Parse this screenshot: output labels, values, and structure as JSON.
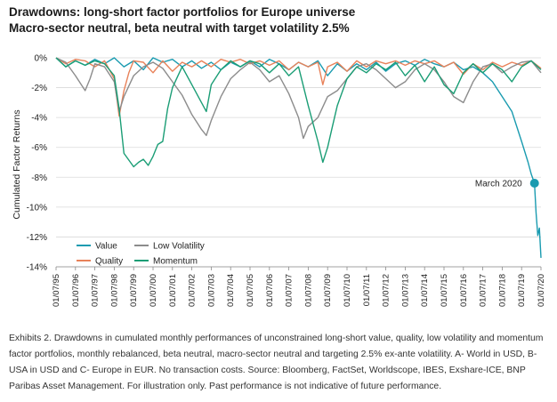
{
  "header": {
    "title": "Drawdowns: long-short factor portfolios for Europe universe",
    "subtitle": "Macro-sector neutral, beta neutral with target volatility 2.5%"
  },
  "caption": "Exhibits 2. Drawdowns in cumulated monthly performances of unconstrained long-short value, quality, low volatility and momentum factor portfolios, monthly rebalanced, beta neutral, macro-sector neutral and targeting 2.5% ex-ante volatility. A- World in USD, B- USA in USD and C- Europe in EUR. No transaction costs. Source: Bloomberg, FactSet, Worldscope, IBES, Exshare-ICE, BNP Paribas Asset Management. For illustration only. Past performance is not indicative of future performance.",
  "chart_data": {
    "type": "line",
    "title": "Drawdowns: long-short factor portfolios for Europe universe",
    "subtitle": "Macro-sector neutral, beta neutral with target volatility 2.5%",
    "xlabel": "",
    "ylabel": "Cumulated Factor Returns",
    "xlim": [
      "1995-07",
      "2020-07"
    ],
    "ylim": [
      -14,
      0
    ],
    "y_ticks": [
      "0%",
      "-2%",
      "-4%",
      "-6%",
      "-8%",
      "-10%",
      "-12%",
      "-14%"
    ],
    "x_ticks": [
      "01/07/95",
      "01/07/96",
      "01/07/97",
      "01/07/98",
      "01/07/99",
      "01/07/00",
      "01/07/01",
      "01/07/02",
      "01/07/03",
      "01/07/04",
      "01/07/05",
      "01/07/06",
      "01/07/07",
      "01/07/08",
      "01/07/09",
      "01/07/10",
      "01/07/11",
      "01/07/12",
      "01/07/13",
      "01/07/14",
      "01/07/15",
      "01/07/16",
      "01/07/17",
      "01/07/18",
      "01/07/19",
      "01/07/20"
    ],
    "grid": "horizontal",
    "legend": "bottom-left",
    "annotation": {
      "text": "March 2020",
      "x": "2020-03",
      "y": -8.4
    },
    "series": [
      {
        "name": "Value",
        "color": "#1a9bb0",
        "points": [
          [
            "1995-07",
            0
          ],
          [
            "1996-01",
            -0.6
          ],
          [
            "1996-07",
            -0.2
          ],
          [
            "1997-01",
            -0.5
          ],
          [
            "1997-07",
            -0.1
          ],
          [
            "1998-01",
            -0.4
          ],
          [
            "1998-07",
            0
          ],
          [
            "1999-01",
            -0.6
          ],
          [
            "1999-07",
            -0.2
          ],
          [
            "2000-01",
            -0.8
          ],
          [
            "2000-07",
            0
          ],
          [
            "2001-01",
            -0.3
          ],
          [
            "2001-07",
            -0.1
          ],
          [
            "2002-01",
            -0.6
          ],
          [
            "2002-07",
            -0.2
          ],
          [
            "2003-01",
            -0.7
          ],
          [
            "2003-07",
            -0.3
          ],
          [
            "2004-01",
            -0.8
          ],
          [
            "2004-07",
            -0.3
          ],
          [
            "2005-01",
            -0.6
          ],
          [
            "2005-07",
            -0.2
          ],
          [
            "2006-01",
            -0.6
          ],
          [
            "2006-07",
            -0.1
          ],
          [
            "2007-01",
            -0.4
          ],
          [
            "2007-07",
            -0.8
          ],
          [
            "2008-01",
            -0.3
          ],
          [
            "2008-07",
            -0.6
          ],
          [
            "2009-01",
            -0.2
          ],
          [
            "2009-07",
            -1.2
          ],
          [
            "2010-01",
            -0.4
          ],
          [
            "2010-07",
            -0.9
          ],
          [
            "2011-01",
            -0.4
          ],
          [
            "2011-07",
            -0.8
          ],
          [
            "2012-01",
            -0.3
          ],
          [
            "2012-07",
            -0.9
          ],
          [
            "2013-01",
            -0.4
          ],
          [
            "2013-07",
            -0.2
          ],
          [
            "2014-01",
            -0.5
          ],
          [
            "2014-07",
            -0.1
          ],
          [
            "2015-01",
            -0.4
          ],
          [
            "2015-07",
            -0.6
          ],
          [
            "2016-01",
            -0.3
          ],
          [
            "2016-07",
            -0.8
          ],
          [
            "2017-01",
            -0.6
          ],
          [
            "2017-07",
            -1.0
          ],
          [
            "2018-01",
            -1.6
          ],
          [
            "2018-07",
            -2.6
          ],
          [
            "2019-01",
            -3.6
          ],
          [
            "2019-07",
            -5.6
          ],
          [
            "2019-11",
            -7.0
          ],
          [
            "2020-01",
            -7.8
          ],
          [
            "2020-03",
            -8.4
          ],
          [
            "2020-04",
            -10.4
          ],
          [
            "2020-05",
            -11.9
          ],
          [
            "2020-06",
            -11.4
          ],
          [
            "2020-07",
            -13.4
          ]
        ]
      },
      {
        "name": "Quality",
        "color": "#e8825a",
        "points": [
          [
            "1995-07",
            0
          ],
          [
            "1996-01",
            -0.4
          ],
          [
            "1996-07",
            -0.1
          ],
          [
            "1997-01",
            -0.2
          ],
          [
            "1997-07",
            -0.6
          ],
          [
            "1998-01",
            -0.2
          ],
          [
            "1998-07",
            -1.4
          ],
          [
            "1998-10",
            -3.9
          ],
          [
            "1999-01",
            -2.2
          ],
          [
            "1999-04",
            -1.0
          ],
          [
            "1999-07",
            -0.2
          ],
          [
            "2000-01",
            -0.3
          ],
          [
            "2000-07",
            -1.0
          ],
          [
            "2001-01",
            -0.2
          ],
          [
            "2001-07",
            -0.9
          ],
          [
            "2002-01",
            -0.3
          ],
          [
            "2002-07",
            -0.6
          ],
          [
            "2003-01",
            -0.2
          ],
          [
            "2003-07",
            -0.6
          ],
          [
            "2004-01",
            -0.1
          ],
          [
            "2004-07",
            -0.3
          ],
          [
            "2005-01",
            -0.1
          ],
          [
            "2005-07",
            -0.4
          ],
          [
            "2006-01",
            -0.2
          ],
          [
            "2006-07",
            -0.5
          ],
          [
            "2007-01",
            -0.2
          ],
          [
            "2007-07",
            -0.8
          ],
          [
            "2008-01",
            -0.3
          ],
          [
            "2008-07",
            -0.6
          ],
          [
            "2009-01",
            -0.3
          ],
          [
            "2009-04",
            -1.8
          ],
          [
            "2009-07",
            -0.6
          ],
          [
            "2010-01",
            -0.3
          ],
          [
            "2010-07",
            -0.9
          ],
          [
            "2011-01",
            -0.2
          ],
          [
            "2011-07",
            -0.6
          ],
          [
            "2012-01",
            -0.2
          ],
          [
            "2012-07",
            -0.4
          ],
          [
            "2013-01",
            -0.2
          ],
          [
            "2013-07",
            -0.5
          ],
          [
            "2014-01",
            -0.2
          ],
          [
            "2014-07",
            -0.4
          ],
          [
            "2015-01",
            -0.2
          ],
          [
            "2015-07",
            -0.6
          ],
          [
            "2016-01",
            -0.3
          ],
          [
            "2016-07",
            -1.1
          ],
          [
            "2017-01",
            -0.4
          ],
          [
            "2017-07",
            -0.8
          ],
          [
            "2018-01",
            -0.3
          ],
          [
            "2018-07",
            -0.6
          ],
          [
            "2019-01",
            -0.3
          ],
          [
            "2019-07",
            -0.5
          ],
          [
            "2020-01",
            -0.2
          ],
          [
            "2020-07",
            -0.7
          ]
        ]
      },
      {
        "name": "Low Volatility",
        "color": "#8c8c8c",
        "points": [
          [
            "1995-07",
            0
          ],
          [
            "1996-01",
            -0.3
          ],
          [
            "1996-07",
            -1.2
          ],
          [
            "1997-01",
            -2.2
          ],
          [
            "1997-04",
            -1.4
          ],
          [
            "1997-07",
            -0.4
          ],
          [
            "1998-01",
            -0.6
          ],
          [
            "1998-07",
            -1.6
          ],
          [
            "1998-10",
            -3.6
          ],
          [
            "1999-01",
            -2.6
          ],
          [
            "1999-07",
            -1.2
          ],
          [
            "2000-01",
            -0.6
          ],
          [
            "2000-07",
            -0.3
          ],
          [
            "2001-01",
            -0.7
          ],
          [
            "2001-07",
            -1.6
          ],
          [
            "2002-01",
            -2.5
          ],
          [
            "2002-07",
            -3.8
          ],
          [
            "2003-01",
            -4.8
          ],
          [
            "2003-04",
            -5.2
          ],
          [
            "2003-07",
            -4.2
          ],
          [
            "2004-01",
            -2.6
          ],
          [
            "2004-07",
            -1.4
          ],
          [
            "2005-01",
            -0.8
          ],
          [
            "2005-07",
            -0.3
          ],
          [
            "2006-01",
            -0.8
          ],
          [
            "2006-07",
            -1.6
          ],
          [
            "2007-01",
            -1.2
          ],
          [
            "2007-07",
            -2.4
          ],
          [
            "2008-01",
            -4.0
          ],
          [
            "2008-04",
            -5.4
          ],
          [
            "2008-07",
            -4.6
          ],
          [
            "2009-01",
            -4.0
          ],
          [
            "2009-07",
            -2.6
          ],
          [
            "2010-01",
            -2.2
          ],
          [
            "2010-07",
            -1.4
          ],
          [
            "2011-01",
            -0.6
          ],
          [
            "2011-07",
            -0.4
          ],
          [
            "2012-01",
            -0.8
          ],
          [
            "2012-07",
            -1.4
          ],
          [
            "2013-01",
            -2.0
          ],
          [
            "2013-07",
            -1.6
          ],
          [
            "2014-01",
            -0.8
          ],
          [
            "2014-07",
            -0.4
          ],
          [
            "2015-01",
            -0.8
          ],
          [
            "2015-07",
            -1.6
          ],
          [
            "2016-01",
            -2.6
          ],
          [
            "2016-07",
            -3.0
          ],
          [
            "2017-01",
            -1.6
          ],
          [
            "2017-07",
            -0.6
          ],
          [
            "2018-01",
            -0.4
          ],
          [
            "2018-07",
            -1.0
          ],
          [
            "2019-01",
            -0.6
          ],
          [
            "2019-07",
            -0.3
          ],
          [
            "2020-01",
            -0.2
          ],
          [
            "2020-07",
            -1.0
          ]
        ]
      },
      {
        "name": "Momentum",
        "color": "#1a9d75",
        "points": [
          [
            "1995-07",
            0
          ],
          [
            "1996-01",
            -0.6
          ],
          [
            "1996-07",
            -0.2
          ],
          [
            "1997-01",
            -0.5
          ],
          [
            "1997-07",
            -0.2
          ],
          [
            "1998-01",
            -0.4
          ],
          [
            "1998-07",
            -1.2
          ],
          [
            "1998-10",
            -3.4
          ],
          [
            "1999-01",
            -6.4
          ],
          [
            "1999-07",
            -7.3
          ],
          [
            "1999-10",
            -7.0
          ],
          [
            "2000-01",
            -6.8
          ],
          [
            "2000-04",
            -7.2
          ],
          [
            "2000-07",
            -6.6
          ],
          [
            "2000-10",
            -5.8
          ],
          [
            "2001-01",
            -5.6
          ],
          [
            "2001-04",
            -3.4
          ],
          [
            "2001-07",
            -2.0
          ],
          [
            "2002-01",
            -0.6
          ],
          [
            "2002-07",
            -1.8
          ],
          [
            "2003-01",
            -3.0
          ],
          [
            "2003-04",
            -3.6
          ],
          [
            "2003-07",
            -1.8
          ],
          [
            "2004-01",
            -0.8
          ],
          [
            "2004-07",
            -0.2
          ],
          [
            "2005-01",
            -0.6
          ],
          [
            "2005-07",
            -0.2
          ],
          [
            "2006-01",
            -0.4
          ],
          [
            "2006-07",
            -1.0
          ],
          [
            "2007-01",
            -0.4
          ],
          [
            "2007-07",
            -1.2
          ],
          [
            "2008-01",
            -0.6
          ],
          [
            "2008-07",
            -3.2
          ],
          [
            "2009-01",
            -5.6
          ],
          [
            "2009-04",
            -7.0
          ],
          [
            "2009-07",
            -6.0
          ],
          [
            "2009-10",
            -4.6
          ],
          [
            "2010-01",
            -3.2
          ],
          [
            "2010-07",
            -1.4
          ],
          [
            "2011-01",
            -0.6
          ],
          [
            "2011-07",
            -1.0
          ],
          [
            "2012-01",
            -0.4
          ],
          [
            "2012-07",
            -0.8
          ],
          [
            "2013-01",
            -0.3
          ],
          [
            "2013-07",
            -1.2
          ],
          [
            "2014-01",
            -0.5
          ],
          [
            "2014-07",
            -1.6
          ],
          [
            "2015-01",
            -0.6
          ],
          [
            "2015-07",
            -1.8
          ],
          [
            "2016-01",
            -2.4
          ],
          [
            "2016-07",
            -1.0
          ],
          [
            "2017-01",
            -0.4
          ],
          [
            "2017-07",
            -1.0
          ],
          [
            "2018-01",
            -0.4
          ],
          [
            "2018-07",
            -0.8
          ],
          [
            "2019-01",
            -1.6
          ],
          [
            "2019-07",
            -0.6
          ],
          [
            "2020-01",
            -0.2
          ],
          [
            "2020-07",
            -0.8
          ]
        ]
      }
    ]
  }
}
